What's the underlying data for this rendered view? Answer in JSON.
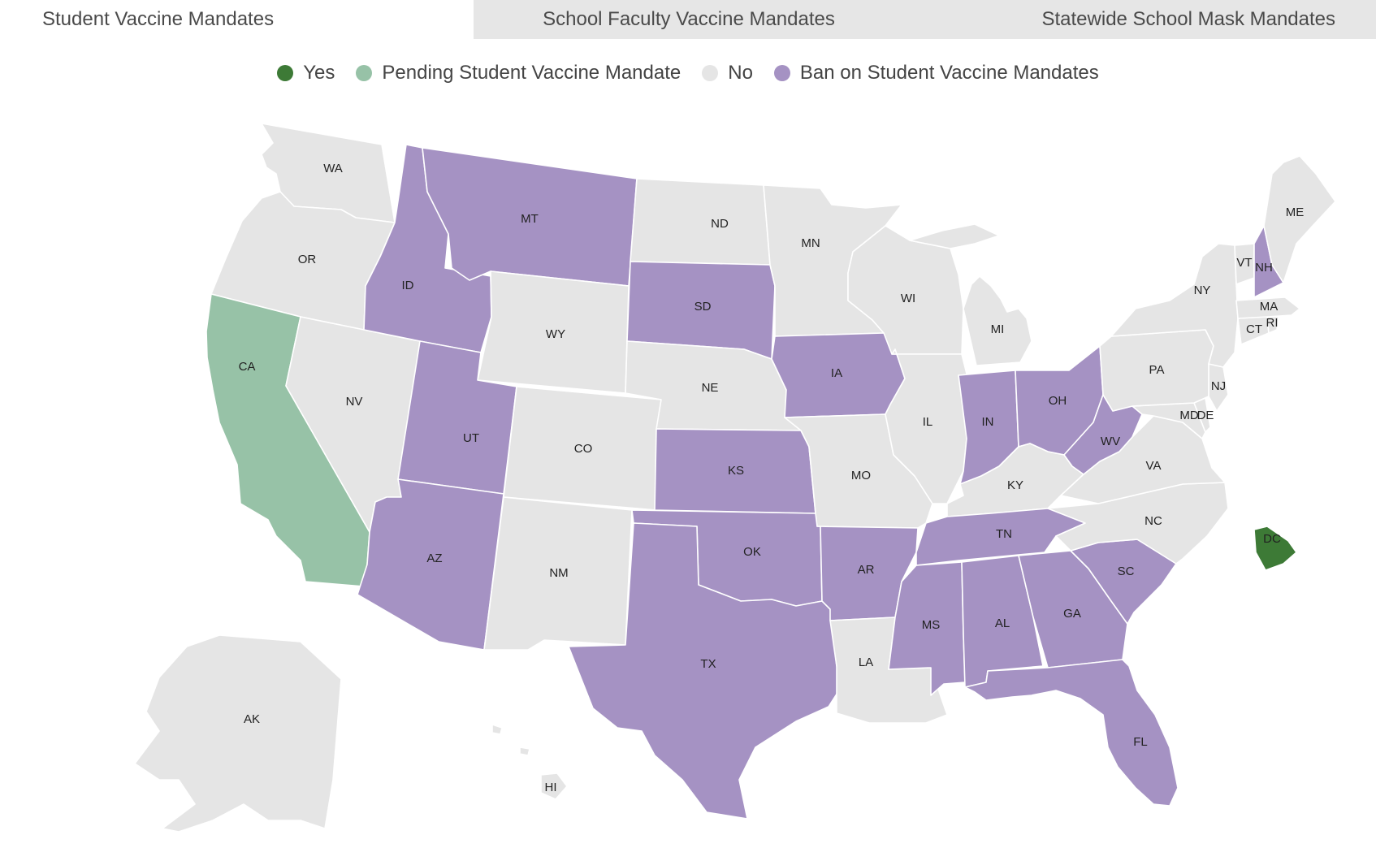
{
  "tabs": [
    {
      "label": "Student Vaccine Mandates",
      "active": true
    },
    {
      "label": "School Faculty Vaccine Mandates",
      "active": false
    },
    {
      "label": "Statewide School Mask Mandates",
      "active": false
    }
  ],
  "legend": [
    {
      "label": "Yes",
      "status": "yes"
    },
    {
      "label": "Pending Student Vaccine Mandate",
      "status": "pending"
    },
    {
      "label": "No",
      "status": "no"
    },
    {
      "label": "Ban on Student Vaccine Mandates",
      "status": "ban"
    }
  ],
  "colors": {
    "yes": "#3d7a36",
    "pending": "#97c2a7",
    "no": "#e5e5e5",
    "ban": "#a592c3"
  },
  "states": [
    {
      "abbr": "WA",
      "status": "no"
    },
    {
      "abbr": "OR",
      "status": "no"
    },
    {
      "abbr": "CA",
      "status": "pending"
    },
    {
      "abbr": "NV",
      "status": "no"
    },
    {
      "abbr": "ID",
      "status": "ban"
    },
    {
      "abbr": "MT",
      "status": "ban"
    },
    {
      "abbr": "WY",
      "status": "no"
    },
    {
      "abbr": "UT",
      "status": "ban"
    },
    {
      "abbr": "AZ",
      "status": "ban"
    },
    {
      "abbr": "CO",
      "status": "no"
    },
    {
      "abbr": "NM",
      "status": "no"
    },
    {
      "abbr": "ND",
      "status": "no"
    },
    {
      "abbr": "SD",
      "status": "ban"
    },
    {
      "abbr": "NE",
      "status": "no"
    },
    {
      "abbr": "KS",
      "status": "ban"
    },
    {
      "abbr": "OK",
      "status": "ban"
    },
    {
      "abbr": "TX",
      "status": "ban"
    },
    {
      "abbr": "MN",
      "status": "no"
    },
    {
      "abbr": "IA",
      "status": "ban"
    },
    {
      "abbr": "MO",
      "status": "no"
    },
    {
      "abbr": "AR",
      "status": "ban"
    },
    {
      "abbr": "LA",
      "status": "no"
    },
    {
      "abbr": "WI",
      "status": "no"
    },
    {
      "abbr": "IL",
      "status": "no"
    },
    {
      "abbr": "MI",
      "status": "no"
    },
    {
      "abbr": "IN",
      "status": "ban"
    },
    {
      "abbr": "OH",
      "status": "ban"
    },
    {
      "abbr": "KY",
      "status": "no"
    },
    {
      "abbr": "TN",
      "status": "ban"
    },
    {
      "abbr": "MS",
      "status": "ban"
    },
    {
      "abbr": "AL",
      "status": "ban"
    },
    {
      "abbr": "GA",
      "status": "ban"
    },
    {
      "abbr": "FL",
      "status": "ban"
    },
    {
      "abbr": "SC",
      "status": "ban"
    },
    {
      "abbr": "NC",
      "status": "no"
    },
    {
      "abbr": "VA",
      "status": "no"
    },
    {
      "abbr": "WV",
      "status": "ban"
    },
    {
      "abbr": "MD",
      "status": "no"
    },
    {
      "abbr": "DE",
      "status": "no"
    },
    {
      "abbr": "NJ",
      "status": "no"
    },
    {
      "abbr": "PA",
      "status": "no"
    },
    {
      "abbr": "NY",
      "status": "no"
    },
    {
      "abbr": "CT",
      "status": "no"
    },
    {
      "abbr": "RI",
      "status": "no"
    },
    {
      "abbr": "MA",
      "status": "no"
    },
    {
      "abbr": "VT",
      "status": "no"
    },
    {
      "abbr": "NH",
      "status": "ban"
    },
    {
      "abbr": "ME",
      "status": "no"
    },
    {
      "abbr": "DC",
      "status": "yes"
    },
    {
      "abbr": "AK",
      "status": "no"
    },
    {
      "abbr": "HI",
      "status": "no"
    }
  ]
}
